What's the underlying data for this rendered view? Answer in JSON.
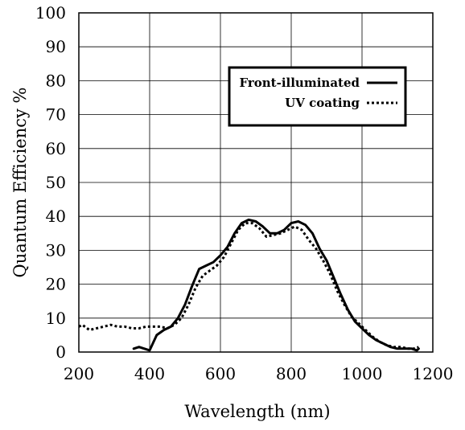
{
  "chart_data": {
    "type": "line",
    "title": "",
    "xlabel": "Wavelength (nm)",
    "ylabel": "Quantum Efficiency %",
    "xlim": [
      200,
      1200
    ],
    "ylim": [
      0,
      100
    ],
    "x_ticks": [
      "200",
      "400",
      "600",
      "800",
      "1000",
      "1200"
    ],
    "y_ticks": [
      "0",
      "10",
      "20",
      "30",
      "40",
      "50",
      "60",
      "70",
      "80",
      "90",
      "100"
    ],
    "grid": true,
    "legend_position": "top-right",
    "series": [
      {
        "name": "Front-illuminated",
        "style": "solid",
        "color": "#000000",
        "points": [
          [
            355,
            1
          ],
          [
            370,
            1.5
          ],
          [
            385,
            1
          ],
          [
            400,
            0.5
          ],
          [
            420,
            5
          ],
          [
            440,
            6.5
          ],
          [
            460,
            7.5
          ],
          [
            480,
            10
          ],
          [
            500,
            14
          ],
          [
            520,
            19.5
          ],
          [
            540,
            24.5
          ],
          [
            560,
            25.5
          ],
          [
            580,
            26.5
          ],
          [
            600,
            28.5
          ],
          [
            620,
            31
          ],
          [
            640,
            35
          ],
          [
            660,
            38
          ],
          [
            680,
            39
          ],
          [
            700,
            38.5
          ],
          [
            720,
            37
          ],
          [
            740,
            35
          ],
          [
            760,
            35
          ],
          [
            780,
            36
          ],
          [
            800,
            38
          ],
          [
            820,
            38.5
          ],
          [
            840,
            37.5
          ],
          [
            860,
            35
          ],
          [
            880,
            30.5
          ],
          [
            900,
            27
          ],
          [
            920,
            22
          ],
          [
            940,
            17
          ],
          [
            960,
            12.5
          ],
          [
            980,
            9
          ],
          [
            1000,
            7
          ],
          [
            1020,
            5
          ],
          [
            1040,
            3.5
          ],
          [
            1060,
            2.5
          ],
          [
            1080,
            1.5
          ],
          [
            1100,
            1
          ],
          [
            1120,
            1
          ],
          [
            1140,
            1
          ],
          [
            1155,
            0.5
          ],
          [
            1160,
            1
          ]
        ]
      },
      {
        "name": "UV coating",
        "style": "dotted",
        "color": "#000000",
        "points": [
          [
            200,
            7.5
          ],
          [
            210,
            8
          ],
          [
            230,
            6.5
          ],
          [
            250,
            7
          ],
          [
            270,
            7.5
          ],
          [
            290,
            8
          ],
          [
            310,
            7.5
          ],
          [
            330,
            7.5
          ],
          [
            350,
            7
          ],
          [
            370,
            7
          ],
          [
            390,
            7.5
          ],
          [
            410,
            7.5
          ],
          [
            430,
            7.5
          ],
          [
            450,
            7
          ],
          [
            470,
            8
          ],
          [
            490,
            10
          ],
          [
            510,
            14
          ],
          [
            530,
            19
          ],
          [
            550,
            22.5
          ],
          [
            570,
            24
          ],
          [
            590,
            25.5
          ],
          [
            610,
            28
          ],
          [
            630,
            32
          ],
          [
            650,
            36
          ],
          [
            670,
            38
          ],
          [
            690,
            38
          ],
          [
            710,
            36.5
          ],
          [
            730,
            34
          ],
          [
            750,
            34.5
          ],
          [
            770,
            35
          ],
          [
            790,
            36
          ],
          [
            810,
            37
          ],
          [
            830,
            36
          ],
          [
            850,
            33
          ],
          [
            870,
            30.5
          ],
          [
            890,
            27
          ],
          [
            910,
            23
          ],
          [
            930,
            18
          ],
          [
            950,
            14
          ],
          [
            970,
            10.5
          ],
          [
            990,
            8.5
          ],
          [
            1010,
            6.5
          ],
          [
            1030,
            4.5
          ],
          [
            1050,
            3
          ],
          [
            1070,
            2
          ],
          [
            1090,
            1.5
          ],
          [
            1110,
            1.5
          ],
          [
            1130,
            1
          ],
          [
            1150,
            1
          ],
          [
            1160,
            1.5
          ]
        ]
      }
    ]
  }
}
